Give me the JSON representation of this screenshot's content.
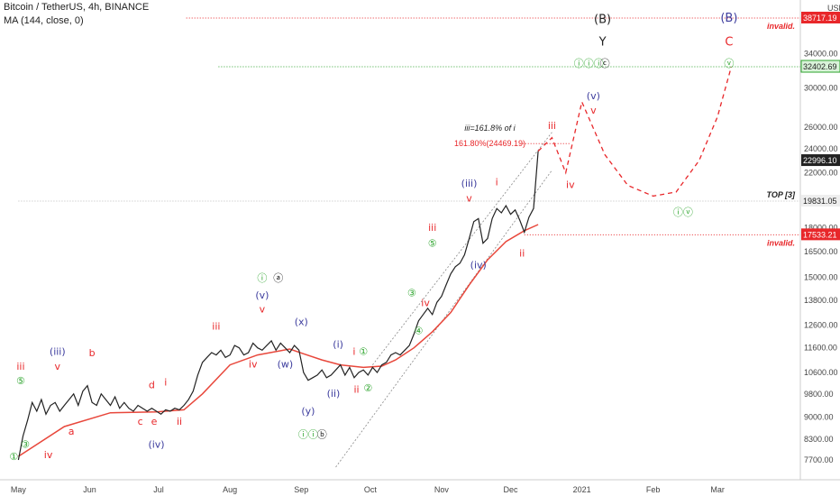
{
  "header": {
    "symbol_line": "Bitcoin / TetherUS, 4h, BINANCE",
    "indicator_line": "MA (144, close, 0)"
  },
  "colors": {
    "candle": "#222222",
    "ma": "#e8473b",
    "wave_red": "#e8272a",
    "wave_blue": "#3d3d9e",
    "wave_green": "#2ea52e",
    "wave_black": "#222222",
    "dotted_green": "#2ea52e",
    "dotted_red": "#e8272a",
    "channel": "#888888"
  },
  "chart_data": {
    "type": "line",
    "title": "Bitcoin / TetherUS, 4h, BINANCE",
    "y_axis": {
      "unit_label": "USDT",
      "scale": "log",
      "ylim": [
        7500,
        38717.19
      ],
      "ticks": [
        34000,
        30000,
        26000,
        24000,
        22000,
        18000,
        16500,
        15000,
        13800,
        12600,
        11600,
        10600,
        9800,
        9000,
        8300,
        7700
      ],
      "tick_labels": [
        "34000.00",
        "30000.00",
        "26000.00",
        "24000.00",
        "22000.00",
        "18000.00",
        "16500.00",
        "15000.00",
        "13800.00",
        "12600.00",
        "11600.00",
        "10600.00",
        "9800.00",
        "9000.00",
        "8300.00",
        "7700.00"
      ]
    },
    "x_axis": {
      "ticks": [
        {
          "label": "May",
          "d": 0
        },
        {
          "label": "Jun",
          "d": 31
        },
        {
          "label": "Jul",
          "d": 61
        },
        {
          "label": "Aug",
          "d": 92
        },
        {
          "label": "Sep",
          "d": 123
        },
        {
          "label": "Oct",
          "d": 153
        },
        {
          "label": "Nov",
          "d": 184
        },
        {
          "label": "Dec",
          "d": 214
        },
        {
          "label": "2021",
          "d": 245
        },
        {
          "label": "Feb",
          "d": 276
        },
        {
          "label": "Mar",
          "d": 304
        }
      ]
    },
    "price_labels": [
      {
        "value": 38717.19,
        "text": "38717.19",
        "style": "red"
      },
      {
        "value": 32402.69,
        "text": "32402.69",
        "style": "green"
      },
      {
        "value": 22996.1,
        "text": "22996.10",
        "style": "dark"
      },
      {
        "value": 19831.05,
        "text": "19831.05",
        "style": "gray"
      },
      {
        "value": 17533.21,
        "text": "17533.21",
        "style": "red"
      }
    ],
    "price_path": [
      [
        0,
        7700
      ],
      [
        2,
        8400
      ],
      [
        4,
        8900
      ],
      [
        6,
        9500
      ],
      [
        8,
        9200
      ],
      [
        10,
        9600
      ],
      [
        12,
        9100
      ],
      [
        14,
        9400
      ],
      [
        16,
        9500
      ],
      [
        18,
        9200
      ],
      [
        20,
        9400
      ],
      [
        22,
        9600
      ],
      [
        24,
        9800
      ],
      [
        26,
        9400
      ],
      [
        28,
        9900
      ],
      [
        30,
        10100
      ],
      [
        32,
        9500
      ],
      [
        34,
        9400
      ],
      [
        36,
        9800
      ],
      [
        38,
        9600
      ],
      [
        40,
        9400
      ],
      [
        42,
        9700
      ],
      [
        44,
        9300
      ],
      [
        46,
        9500
      ],
      [
        48,
        9300
      ],
      [
        50,
        9200
      ],
      [
        52,
        9400
      ],
      [
        54,
        9300
      ],
      [
        56,
        9200
      ],
      [
        58,
        9300
      ],
      [
        60,
        9200
      ],
      [
        62,
        9100
      ],
      [
        64,
        9250
      ],
      [
        66,
        9200
      ],
      [
        68,
        9300
      ],
      [
        70,
        9250
      ],
      [
        72,
        9400
      ],
      [
        74,
        9600
      ],
      [
        76,
        9900
      ],
      [
        78,
        10500
      ],
      [
        80,
        11000
      ],
      [
        82,
        11200
      ],
      [
        84,
        11400
      ],
      [
        86,
        11300
      ],
      [
        88,
        11500
      ],
      [
        90,
        11200
      ],
      [
        92,
        11300
      ],
      [
        94,
        11700
      ],
      [
        96,
        11600
      ],
      [
        98,
        11300
      ],
      [
        100,
        11400
      ],
      [
        102,
        11800
      ],
      [
        104,
        11600
      ],
      [
        106,
        11500
      ],
      [
        108,
        11700
      ],
      [
        110,
        11900
      ],
      [
        112,
        11500
      ],
      [
        114,
        11800
      ],
      [
        116,
        11600
      ],
      [
        118,
        11400
      ],
      [
        120,
        11700
      ],
      [
        122,
        11500
      ],
      [
        124,
        10600
      ],
      [
        126,
        10300
      ],
      [
        128,
        10400
      ],
      [
        130,
        10500
      ],
      [
        132,
        10700
      ],
      [
        134,
        10400
      ],
      [
        136,
        10500
      ],
      [
        138,
        10700
      ],
      [
        140,
        10900
      ],
      [
        142,
        10500
      ],
      [
        144,
        10800
      ],
      [
        146,
        10400
      ],
      [
        148,
        10600
      ],
      [
        150,
        10700
      ],
      [
        152,
        10500
      ],
      [
        154,
        10800
      ],
      [
        156,
        10600
      ],
      [
        158,
        10900
      ],
      [
        160,
        11000
      ],
      [
        162,
        11300
      ],
      [
        164,
        11400
      ],
      [
        166,
        11300
      ],
      [
        168,
        11500
      ],
      [
        170,
        11700
      ],
      [
        172,
        12200
      ],
      [
        174,
        12800
      ],
      [
        176,
        13100
      ],
      [
        178,
        13400
      ],
      [
        180,
        13100
      ],
      [
        182,
        13700
      ],
      [
        184,
        14000
      ],
      [
        186,
        14600
      ],
      [
        188,
        15200
      ],
      [
        190,
        15600
      ],
      [
        192,
        15800
      ],
      [
        194,
        16300
      ],
      [
        196,
        17300
      ],
      [
        198,
        18400
      ],
      [
        200,
        18600
      ],
      [
        202,
        17000
      ],
      [
        204,
        17300
      ],
      [
        206,
        18600
      ],
      [
        208,
        19300
      ],
      [
        210,
        19000
      ],
      [
        212,
        19500
      ],
      [
        214,
        18900
      ],
      [
        216,
        19200
      ],
      [
        218,
        18500
      ],
      [
        220,
        17700
      ],
      [
        222,
        18700
      ],
      [
        224,
        19300
      ],
      [
        226,
        23800
      ]
    ],
    "ma_path": [
      [
        0,
        7800
      ],
      [
        20,
        8700
      ],
      [
        40,
        9150
      ],
      [
        60,
        9180
      ],
      [
        72,
        9250
      ],
      [
        80,
        9800
      ],
      [
        92,
        10900
      ],
      [
        104,
        11300
      ],
      [
        118,
        11550
      ],
      [
        124,
        11350
      ],
      [
        132,
        11100
      ],
      [
        140,
        10900
      ],
      [
        150,
        10800
      ],
      [
        158,
        10850
      ],
      [
        164,
        11100
      ],
      [
        172,
        11600
      ],
      [
        180,
        12300
      ],
      [
        188,
        13200
      ],
      [
        196,
        14600
      ],
      [
        204,
        16000
      ],
      [
        212,
        17100
      ],
      [
        220,
        17800
      ],
      [
        226,
        18200
      ]
    ],
    "projection_path": [
      [
        226,
        23800
      ],
      [
        232,
        25000
      ],
      [
        238,
        22000
      ],
      [
        245,
        28500
      ],
      [
        255,
        23500
      ],
      [
        265,
        21000
      ],
      [
        276,
        20200
      ],
      [
        286,
        20500
      ],
      [
        296,
        23000
      ],
      [
        304,
        27000
      ],
      [
        310,
        32400
      ]
    ],
    "levels": [
      {
        "value": 38717.19,
        "from_d": 73,
        "style": "red",
        "note": "invalid."
      },
      {
        "value": 32402.69,
        "from_d": 87,
        "style": "green",
        "note": ""
      },
      {
        "value": 19831.05,
        "from_d": 0,
        "style": "gray",
        "note": "TOP [3]"
      },
      {
        "value": 17533.21,
        "from_d": 220,
        "style": "red",
        "note": "invalid."
      }
    ],
    "channel": {
      "upper": [
        [
          154,
          10900
        ],
        [
          232,
          25500
        ]
      ],
      "lower": [
        [
          138,
          7500
        ],
        [
          232,
          22200
        ]
      ]
    },
    "fib_annotation": {
      "line1": "iii=161.8% of i",
      "line2": "161.80%(24469.19)",
      "value": 24469.19
    },
    "wave_labels": [
      {
        "t": "①",
        "d": -2,
        "v": 7700,
        "c": "g"
      },
      {
        "t": "③",
        "d": 3,
        "v": 8050,
        "c": "g"
      },
      {
        "t": "iv",
        "d": 13,
        "v": 7750,
        "c": "r"
      },
      {
        "t": "⑤",
        "d": 1,
        "v": 10150,
        "c": "g"
      },
      {
        "t": "iii",
        "d": 1,
        "v": 10700,
        "c": "r"
      },
      {
        "t": "(iii)",
        "d": 17,
        "v": 11300,
        "c": "b"
      },
      {
        "t": "v",
        "d": 17,
        "v": 10700,
        "c": "r"
      },
      {
        "t": "a",
        "d": 23,
        "v": 8450,
        "c": "r"
      },
      {
        "t": "b",
        "d": 32,
        "v": 11250,
        "c": "r"
      },
      {
        "t": "c",
        "d": 53,
        "v": 8750,
        "c": "r"
      },
      {
        "t": "e",
        "d": 59,
        "v": 8750,
        "c": "r"
      },
      {
        "t": "d",
        "d": 58,
        "v": 10000,
        "c": "r"
      },
      {
        "t": "i",
        "d": 64,
        "v": 10100,
        "c": "r"
      },
      {
        "t": "ii",
        "d": 70,
        "v": 8750,
        "c": "r"
      },
      {
        "t": "(iv)",
        "d": 60,
        "v": 8050,
        "c": "b"
      },
      {
        "t": "iii",
        "d": 86,
        "v": 12400,
        "c": "r"
      },
      {
        "t": "iv",
        "d": 102,
        "v": 10800,
        "c": "r"
      },
      {
        "t": "ⓘ",
        "d": 106,
        "v": 14800,
        "c": "g"
      },
      {
        "t": "ⓐ",
        "d": 113,
        "v": 14800,
        "c": "k"
      },
      {
        "t": "(v)",
        "d": 106,
        "v": 13900,
        "c": "b"
      },
      {
        "t": "v",
        "d": 106,
        "v": 13200,
        "c": "r"
      },
      {
        "t": "(x)",
        "d": 123,
        "v": 12600,
        "c": "b"
      },
      {
        "t": "(w)",
        "d": 116,
        "v": 10800,
        "c": "b"
      },
      {
        "t": "(i)",
        "d": 139,
        "v": 11600,
        "c": "b"
      },
      {
        "t": "i",
        "d": 146,
        "v": 11300,
        "c": "r"
      },
      {
        "t": "(ii)",
        "d": 137,
        "v": 9700,
        "c": "b"
      },
      {
        "t": "ii",
        "d": 147,
        "v": 9850,
        "c": "r"
      },
      {
        "t": "②",
        "d": 152,
        "v": 9900,
        "c": "g"
      },
      {
        "t": "①",
        "d": 150,
        "v": 11300,
        "c": "g"
      },
      {
        "t": "(y)",
        "d": 126,
        "v": 9100,
        "c": "b"
      },
      {
        "t": "ⓘⓘ",
        "d": 126,
        "v": 8350,
        "c": "g"
      },
      {
        "t": "ⓑ",
        "d": 132,
        "v": 8350,
        "c": "k"
      },
      {
        "t": "③",
        "d": 171,
        "v": 14000,
        "c": "g"
      },
      {
        "t": "iv",
        "d": 177,
        "v": 13500,
        "c": "r"
      },
      {
        "t": "④",
        "d": 174,
        "v": 12200,
        "c": "g"
      },
      {
        "t": "iii",
        "d": 180,
        "v": 17800,
        "c": "r"
      },
      {
        "t": "⑤",
        "d": 180,
        "v": 16800,
        "c": "g"
      },
      {
        "t": "(iii)",
        "d": 196,
        "v": 20900,
        "c": "b"
      },
      {
        "t": "v",
        "d": 196,
        "v": 19800,
        "c": "r"
      },
      {
        "t": "i",
        "d": 208,
        "v": 21000,
        "c": "r"
      },
      {
        "t": "(iv)",
        "d": 200,
        "v": 15500,
        "c": "b"
      },
      {
        "t": "ii",
        "d": 219,
        "v": 16200,
        "c": "r"
      },
      {
        "t": "iii",
        "d": 232,
        "v": 25800,
        "c": "r"
      },
      {
        "t": "iv",
        "d": 240,
        "v": 20800,
        "c": "r"
      },
      {
        "t": "ⓘⓘⓘ",
        "d": 248,
        "v": 32400,
        "c": "g"
      },
      {
        "t": "ⓒ",
        "d": 255,
        "v": 32400,
        "c": "k"
      },
      {
        "t": "(v)",
        "d": 250,
        "v": 28800,
        "c": "b"
      },
      {
        "t": "v",
        "d": 250,
        "v": 27300,
        "c": "r"
      },
      {
        "t": "(B)",
        "d": 254,
        "v": 38000,
        "c": "k"
      },
      {
        "t": "Y",
        "d": 254,
        "v": 35000,
        "c": "k"
      },
      {
        "t": "(B)",
        "d": 309,
        "v": 38200,
        "c": "b"
      },
      {
        "t": "C",
        "d": 309,
        "v": 35000,
        "c": "r"
      },
      {
        "t": "ⓥ",
        "d": 309,
        "v": 32400,
        "c": "g"
      },
      {
        "t": "ⓘⓥ",
        "d": 289,
        "v": 18800,
        "c": "g"
      }
    ],
    "grid": false,
    "legend": "none"
  }
}
